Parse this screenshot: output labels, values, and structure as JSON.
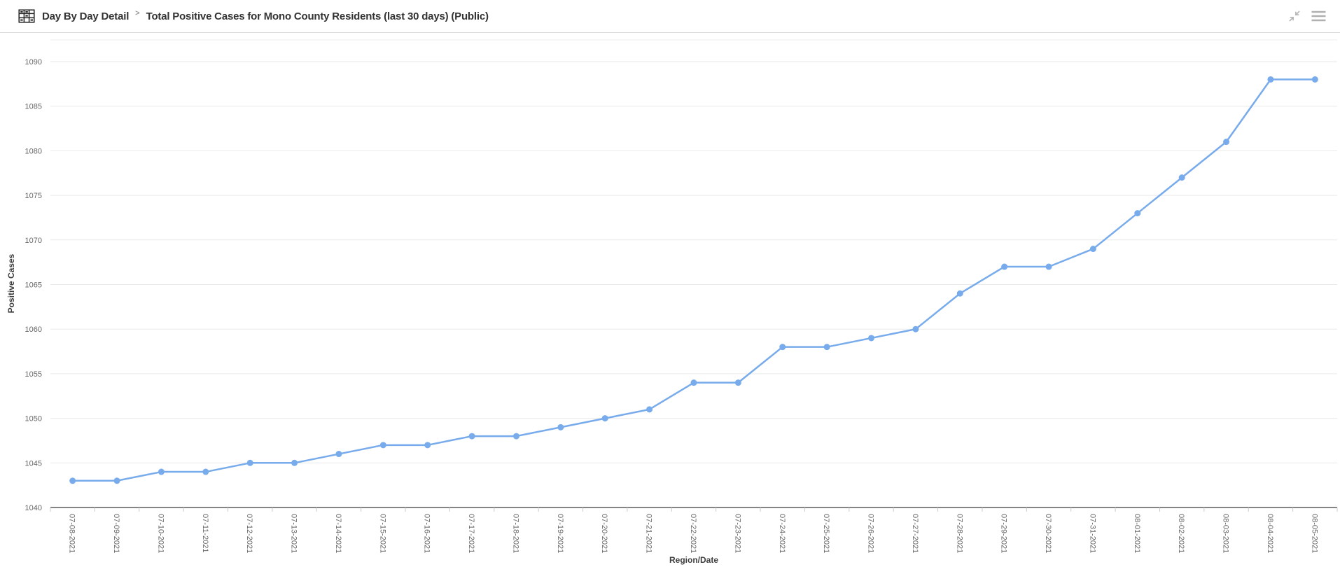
{
  "header": {
    "breadcrumb": "Day By Day Detail",
    "separator": ">",
    "title": "Total Positive Cases for Mono County Residents (last 30 days) (Public)",
    "icons": [
      "pivot-table-icon",
      "collapse-icon",
      "menu-icon"
    ]
  },
  "chart_data": {
    "type": "line",
    "title": "",
    "xlabel": "Region/Date",
    "ylabel": "Positive Cases",
    "categories": [
      "07-08-2021",
      "07-09-2021",
      "07-10-2021",
      "07-11-2021",
      "07-12-2021",
      "07-13-2021",
      "07-14-2021",
      "07-15-2021",
      "07-16-2021",
      "07-17-2021",
      "07-18-2021",
      "07-19-2021",
      "07-20-2021",
      "07-21-2021",
      "07-22-2021",
      "07-23-2021",
      "07-24-2021",
      "07-25-2021",
      "07-26-2021",
      "07-27-2021",
      "07-28-2021",
      "07-29-2021",
      "07-30-2021",
      "07-31-2021",
      "08-01-2021",
      "08-02-2021",
      "08-03-2021",
      "08-04-2021",
      "08-05-2021"
    ],
    "series": [
      {
        "name": "Positive Cases",
        "color": "#78abeb",
        "marker": "circle",
        "values": [
          1043,
          1043,
          1044,
          1044,
          1045,
          1045,
          1046,
          1047,
          1047,
          1048,
          1048,
          1049,
          1050,
          1051,
          1054,
          1054,
          1058,
          1058,
          1059,
          1060,
          1064,
          1067,
          1067,
          1069,
          1073,
          1077,
          1081,
          1088,
          1088
        ]
      }
    ],
    "ylim": [
      1040,
      1090
    ],
    "y_ticks": [
      1040,
      1045,
      1050,
      1055,
      1060,
      1065,
      1070,
      1075,
      1080,
      1085,
      1090
    ],
    "x_label_rotation": 90,
    "grid": true,
    "legend_position": "none"
  },
  "colors": {
    "line": "#78abeb",
    "grid": "#e9e9e9",
    "plot_border": "#ededed",
    "axis_line": "#3a3a3a",
    "tick_mark": "#c9ccd4",
    "tick_label": "#666666",
    "axis_title": "#3d3d3d",
    "header_text": "#333333",
    "icon_gray": "#b5b5b5",
    "header_border": "#dcdcdc"
  }
}
